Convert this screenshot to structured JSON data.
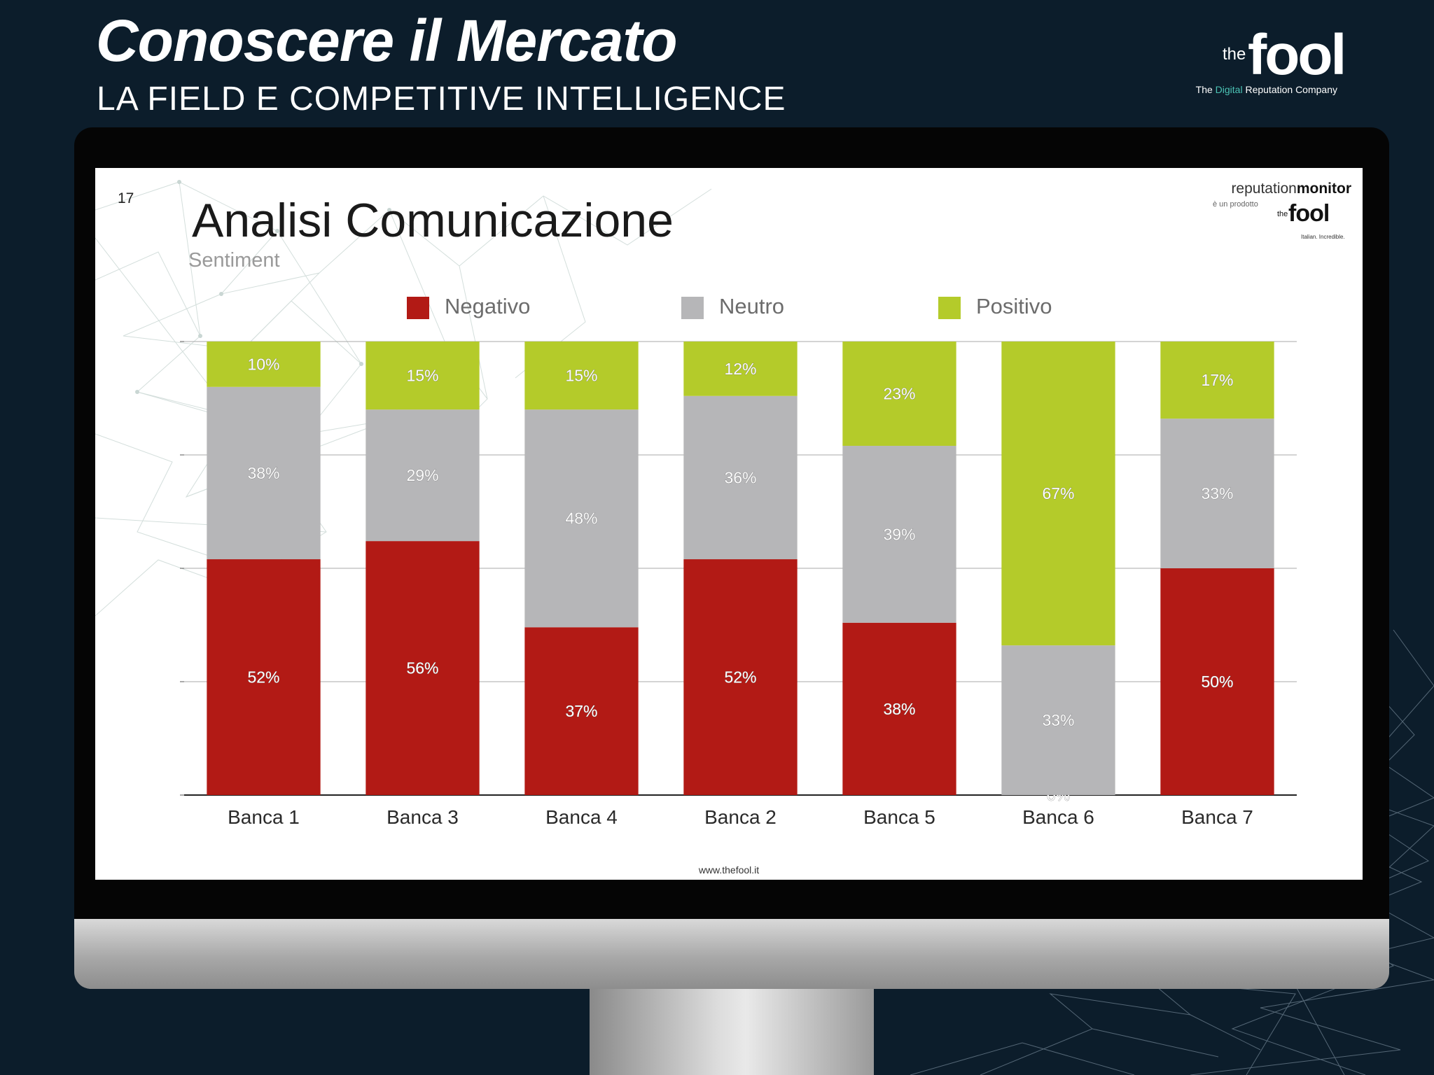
{
  "header": {
    "title": "Conoscere il Mercato",
    "subtitle": "LA FIELD E COMPETITIVE INTELLIGENCE"
  },
  "brand": {
    "the": "the",
    "fool": "fool",
    "tagline_pre": "The ",
    "tagline_highlight": "Digital",
    "tagline_post": " Reputation Company"
  },
  "slide": {
    "number": "17",
    "title": "Analisi Comunicazione",
    "subtitle": "Sentiment",
    "footer_url": "www.thefool.it",
    "logo": {
      "name_light": "reputation",
      "name_bold": "monitor",
      "sub": "è un prodotto",
      "the": "the",
      "fool": "fool",
      "tag": "Italian. Incredible."
    }
  },
  "colors": {
    "negativo": "#b21a15",
    "neutro": "#b6b6b8",
    "positivo": "#b4cb2a",
    "background": "#0c1d2b"
  },
  "chart_data": {
    "type": "bar",
    "stacked": true,
    "percent": true,
    "categories": [
      "Banca 1",
      "Banca 3",
      "Banca 4",
      "Banca 2",
      "Banca 5",
      "Banca 6",
      "Banca 7"
    ],
    "series": [
      {
        "name": "Negativo",
        "values": [
          52,
          56,
          37,
          52,
          38,
          0,
          50
        ]
      },
      {
        "name": "Neutro",
        "values": [
          38,
          29,
          48,
          36,
          39,
          33,
          33
        ]
      },
      {
        "name": "Positivo",
        "values": [
          10,
          15,
          15,
          12,
          23,
          67,
          17
        ]
      }
    ],
    "ylim": [
      0,
      100
    ],
    "grid": true,
    "legend": "top"
  }
}
